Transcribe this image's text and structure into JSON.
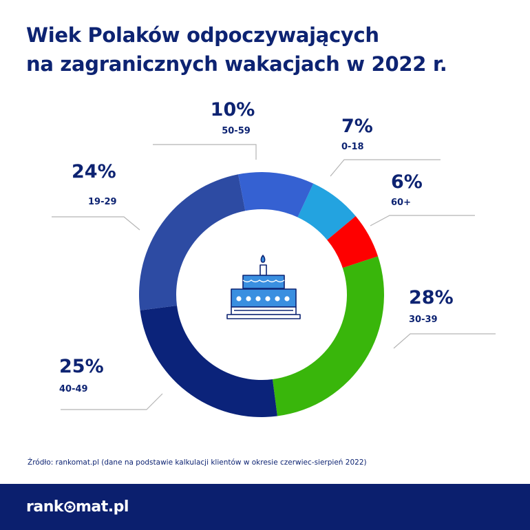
{
  "title": {
    "line1": "Wiek Polaków odpoczywających",
    "line2": "na zagranicznych wakacjach w 2022 r."
  },
  "source": "Źródło: rankomat.pl (dane na podstawie kalkulacji klientów w okresie czerwiec-sierpień 2022)",
  "logo": {
    "before": "rank",
    "after": "mat.pl"
  },
  "icons": {
    "center": "birthday-cake-icon",
    "logo": "star-o-icon"
  },
  "chart_data": {
    "type": "pie",
    "donut": true,
    "unit": "%",
    "slices": [
      {
        "label": "0-18",
        "value": 7,
        "display": "7%",
        "color": "#23a3e0"
      },
      {
        "label": "60+",
        "value": 6,
        "display": "6%",
        "color": "#fe0000"
      },
      {
        "label": "30-39",
        "value": 28,
        "display": "28%",
        "color": "#39b60b"
      },
      {
        "label": "40-49",
        "value": 25,
        "display": "25%",
        "color": "#0b237a"
      },
      {
        "label": "19-29",
        "value": 24,
        "display": "24%",
        "color": "#2d4ba3"
      },
      {
        "label": "50-59",
        "value": 10,
        "display": "10%",
        "color": "#3561d2"
      }
    ]
  }
}
